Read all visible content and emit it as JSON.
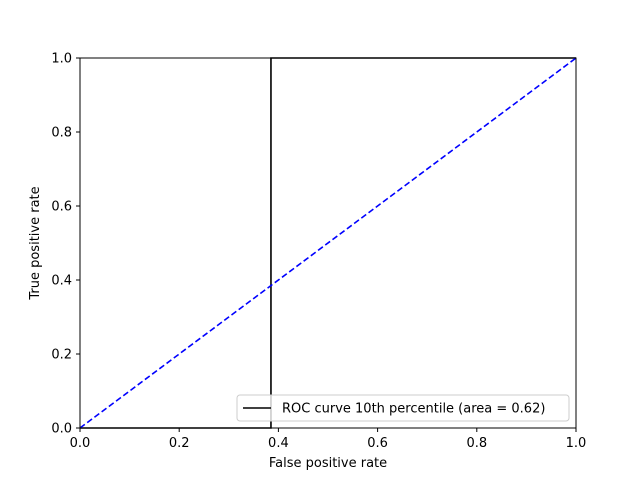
{
  "chart_data": {
    "type": "line",
    "title": "",
    "xlabel": "False positive rate",
    "ylabel": "True positive rate",
    "xlim": [
      0.0,
      1.0
    ],
    "ylim": [
      0.0,
      1.0
    ],
    "grid": false,
    "x_ticks": [
      0.0,
      0.2,
      0.4,
      0.6,
      0.8,
      1.0
    ],
    "y_ticks": [
      0.0,
      0.2,
      0.4,
      0.6,
      0.8,
      1.0
    ],
    "x_tick_labels": [
      "0.0",
      "0.2",
      "0.4",
      "0.6",
      "0.8",
      "1.0"
    ],
    "y_tick_labels": [
      "0.0",
      "0.2",
      "0.4",
      "0.6",
      "0.8",
      "1.0"
    ],
    "legend_position": "lower-right",
    "series": [
      {
        "name": "ROC curve 10th percentile (area = 0.62)",
        "color": "#000000",
        "style": "solid",
        "x": [
          0.0,
          0.385,
          0.385,
          1.0
        ],
        "y": [
          0.0,
          0.0,
          1.0,
          1.0
        ]
      },
      {
        "color": "#0000ff",
        "style": "dashed",
        "x": [
          0.0,
          1.0
        ],
        "y": [
          0.0,
          1.0
        ]
      }
    ]
  }
}
